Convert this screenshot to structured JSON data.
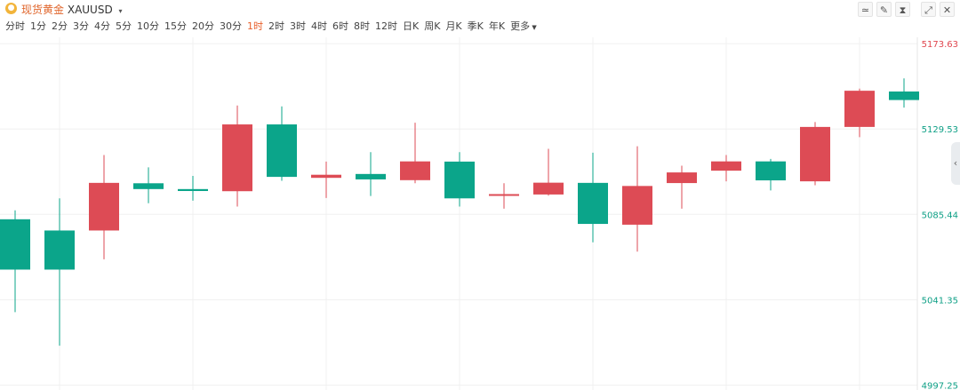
{
  "header": {
    "symbol_cn": "现货黄金",
    "symbol": "XAUUSD",
    "caret": "▾"
  },
  "toolbar": {
    "icons": [
      "chart-style-icon",
      "draw-icon",
      "indicator-icon",
      "fullscreen-icon",
      "close-icon"
    ],
    "glyphs": [
      "≃",
      "✎",
      "⧗",
      "⤢",
      "✕"
    ]
  },
  "periods": [
    {
      "label": "分时"
    },
    {
      "label": "1分"
    },
    {
      "label": "2分"
    },
    {
      "label": "3分"
    },
    {
      "label": "4分"
    },
    {
      "label": "5分"
    },
    {
      "label": "10分"
    },
    {
      "label": "15分"
    },
    {
      "label": "20分"
    },
    {
      "label": "30分"
    },
    {
      "label": "1时",
      "active": true
    },
    {
      "label": "2时"
    },
    {
      "label": "3时"
    },
    {
      "label": "4时"
    },
    {
      "label": "6时"
    },
    {
      "label": "8时"
    },
    {
      "label": "12时"
    },
    {
      "label": "日K"
    },
    {
      "label": "周K"
    },
    {
      "label": "月K"
    },
    {
      "label": "季K"
    },
    {
      "label": "年K"
    },
    {
      "label": "更多"
    }
  ],
  "expand_glyph": "‹",
  "chart_data": {
    "type": "candlestick",
    "title": "",
    "y_ticks": [
      {
        "label": "5173.63",
        "value": 5173.63,
        "color": "#e0464e"
      },
      {
        "label": "5129.53",
        "value": 5129.53,
        "color": "#0d9f85"
      },
      {
        "label": "5085.44",
        "value": 5085.44,
        "color": "#0d9f85"
      },
      {
        "label": "5041.35",
        "value": 5041.35,
        "color": "#0d9f85"
      },
      {
        "label": "4997.25",
        "value": 4997.25,
        "color": "#0d9f85"
      }
    ],
    "ylim": [
      4994.7,
      5176.9
    ],
    "colors": {
      "up": "#dd4b55",
      "down": "#0ba58a",
      "grid": "#f0f0f0"
    },
    "candles": [
      {
        "o": 5082.9,
        "h": 5087.5,
        "l": 5034.9,
        "c": 5056.9
      },
      {
        "o": 5077.1,
        "h": 5093.7,
        "l": 5017.6,
        "c": 5056.9
      },
      {
        "o": 5077.1,
        "h": 5116.1,
        "l": 5062.2,
        "c": 5101.7
      },
      {
        "o": 5101.5,
        "h": 5109.7,
        "l": 5091.2,
        "c": 5098.5
      },
      {
        "o": 5098.5,
        "h": 5105.3,
        "l": 5092.5,
        "c": 5097.5
      },
      {
        "o": 5097.4,
        "h": 5141.7,
        "l": 5089.5,
        "c": 5131.9
      },
      {
        "o": 5131.9,
        "h": 5141.2,
        "l": 5102.8,
        "c": 5104.8
      },
      {
        "o": 5104.3,
        "h": 5112.7,
        "l": 5093.9,
        "c": 5105.9
      },
      {
        "o": 5106.3,
        "h": 5117.6,
        "l": 5094.9,
        "c": 5103.5
      },
      {
        "o": 5103.1,
        "h": 5132.8,
        "l": 5101.5,
        "c": 5112.8
      },
      {
        "o": 5112.7,
        "h": 5117.6,
        "l": 5089.5,
        "c": 5093.7
      },
      {
        "o": 5095.1,
        "h": 5101.5,
        "l": 5088.4,
        "c": 5095.9
      },
      {
        "o": 5095.7,
        "h": 5119.3,
        "l": 5095.1,
        "c": 5101.8
      },
      {
        "o": 5101.7,
        "h": 5117.3,
        "l": 5071.0,
        "c": 5080.5
      },
      {
        "o": 5080.1,
        "h": 5120.6,
        "l": 5066.2,
        "c": 5100.1
      },
      {
        "o": 5101.6,
        "h": 5110.6,
        "l": 5088.4,
        "c": 5107.1
      },
      {
        "o": 5108.0,
        "h": 5116.1,
        "l": 5102.5,
        "c": 5112.8
      },
      {
        "o": 5112.8,
        "h": 5114.1,
        "l": 5097.8,
        "c": 5103.0
      },
      {
        "o": 5102.5,
        "h": 5133.1,
        "l": 5100.5,
        "c": 5130.6
      },
      {
        "o": 5130.6,
        "h": 5150.4,
        "l": 5125.3,
        "c": 5149.3
      },
      {
        "o": 5148.9,
        "h": 5155.7,
        "l": 5140.6,
        "c": 5144.5
      }
    ]
  }
}
